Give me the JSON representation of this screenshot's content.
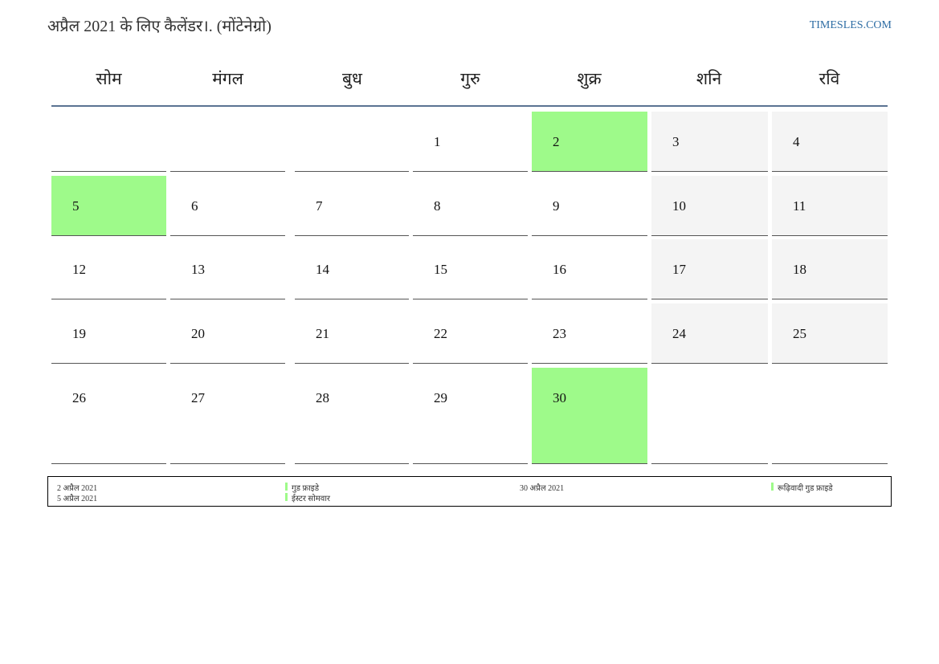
{
  "header": {
    "title": "अप्रैल 2021 के लिए कैलेंडर।. (मोंटेनेग्रो)",
    "site": "TIMESLES.COM"
  },
  "weekdays": [
    "सोम",
    "मंगल",
    "बुध",
    "गुरु",
    "शुक्र",
    "शनि",
    "रवि"
  ],
  "highlight_color": "#9efa8a",
  "weeks": [
    [
      {
        "day": null
      },
      {
        "day": null
      },
      {
        "day": null
      },
      {
        "day": 1
      },
      {
        "day": 2,
        "highlight": true
      },
      {
        "day": 3
      },
      {
        "day": 4
      }
    ],
    [
      {
        "day": 5,
        "highlight": true
      },
      {
        "day": 6
      },
      {
        "day": 7
      },
      {
        "day": 8
      },
      {
        "day": 9
      },
      {
        "day": 10
      },
      {
        "day": 11
      }
    ],
    [
      {
        "day": 12
      },
      {
        "day": 13
      },
      {
        "day": 14
      },
      {
        "day": 15
      },
      {
        "day": 16
      },
      {
        "day": 17
      },
      {
        "day": 18
      }
    ],
    [
      {
        "day": 19
      },
      {
        "day": 20
      },
      {
        "day": 21
      },
      {
        "day": 22
      },
      {
        "day": 23
      },
      {
        "day": 24
      },
      {
        "day": 25
      }
    ],
    [
      {
        "day": 26
      },
      {
        "day": 27
      },
      {
        "day": 28
      },
      {
        "day": 29
      },
      {
        "day": 30,
        "highlight": true
      },
      {
        "day": null
      },
      {
        "day": null
      }
    ]
  ],
  "holidays": [
    {
      "date": "2 अप्रैल 2021",
      "name": "गुड फ्राइडे"
    },
    {
      "date": "5 अप्रैल 2021",
      "name": "ईस्टर सोमवार"
    },
    {
      "date": "30 अप्रैल 2021",
      "name": "रूढ़िवादी गुड फ्राइडे"
    }
  ]
}
